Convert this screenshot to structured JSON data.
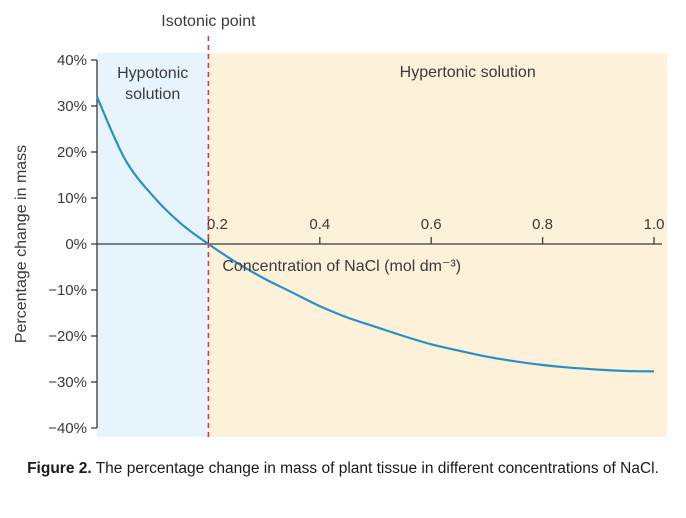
{
  "chart_data": {
    "type": "line",
    "title": "",
    "xlabel": "Concentration of NaCl (mol dm⁻³)",
    "ylabel": "Percentage change in mass",
    "xlim": [
      0,
      1.0
    ],
    "ylim": [
      -40,
      40
    ],
    "x_ticks": [
      0.2,
      0.4,
      0.6,
      0.8,
      1.0
    ],
    "x_tick_labels": [
      "0.2",
      "0.4",
      "0.6",
      "0.8",
      "1.0"
    ],
    "y_ticks": [
      40,
      30,
      20,
      10,
      0,
      -10,
      -20,
      -30,
      -40
    ],
    "y_tick_labels": [
      "40%",
      "30%",
      "20%",
      "10%",
      "0%",
      "−10%",
      "−20%",
      "−30%",
      "−40%"
    ],
    "series": [
      {
        "x": [
          0.0,
          0.05,
          0.1,
          0.15,
          0.2,
          0.25,
          0.3,
          0.35,
          0.4,
          0.45,
          0.5,
          0.55,
          0.6,
          0.65,
          0.7,
          0.75,
          0.8,
          0.85,
          0.9,
          0.95,
          1.0
        ],
        "y": [
          32,
          18.5,
          10.5,
          4.5,
          0,
          -4,
          -7.5,
          -10.5,
          -13.5,
          -16,
          -18,
          -20,
          -21.8,
          -23.2,
          -24.5,
          -25.5,
          -26.3,
          -26.9,
          -27.3,
          -27.6,
          -27.7
        ]
      }
    ],
    "isotonic_x": 0.2,
    "regions": [
      {
        "label": "Hypotonic\nsolution",
        "from": 0.0,
        "to": 0.2,
        "color": "#e8f4fc"
      },
      {
        "label": "Hypertonic solution",
        "from": 0.2,
        "to": 1.0,
        "color": "#fdf1d9"
      }
    ],
    "annotations": [
      {
        "text": "Isotonic point",
        "x": 0.2
      }
    ],
    "colors": {
      "line": "#2a8fc7",
      "isotonic_line": "#e0305a",
      "axis": "#3a3a3a"
    },
    "grid": false
  },
  "caption": {
    "label": "Figure 2.",
    "text": " The percentage change in mass of plant tissue in different concentrations of NaCl."
  }
}
